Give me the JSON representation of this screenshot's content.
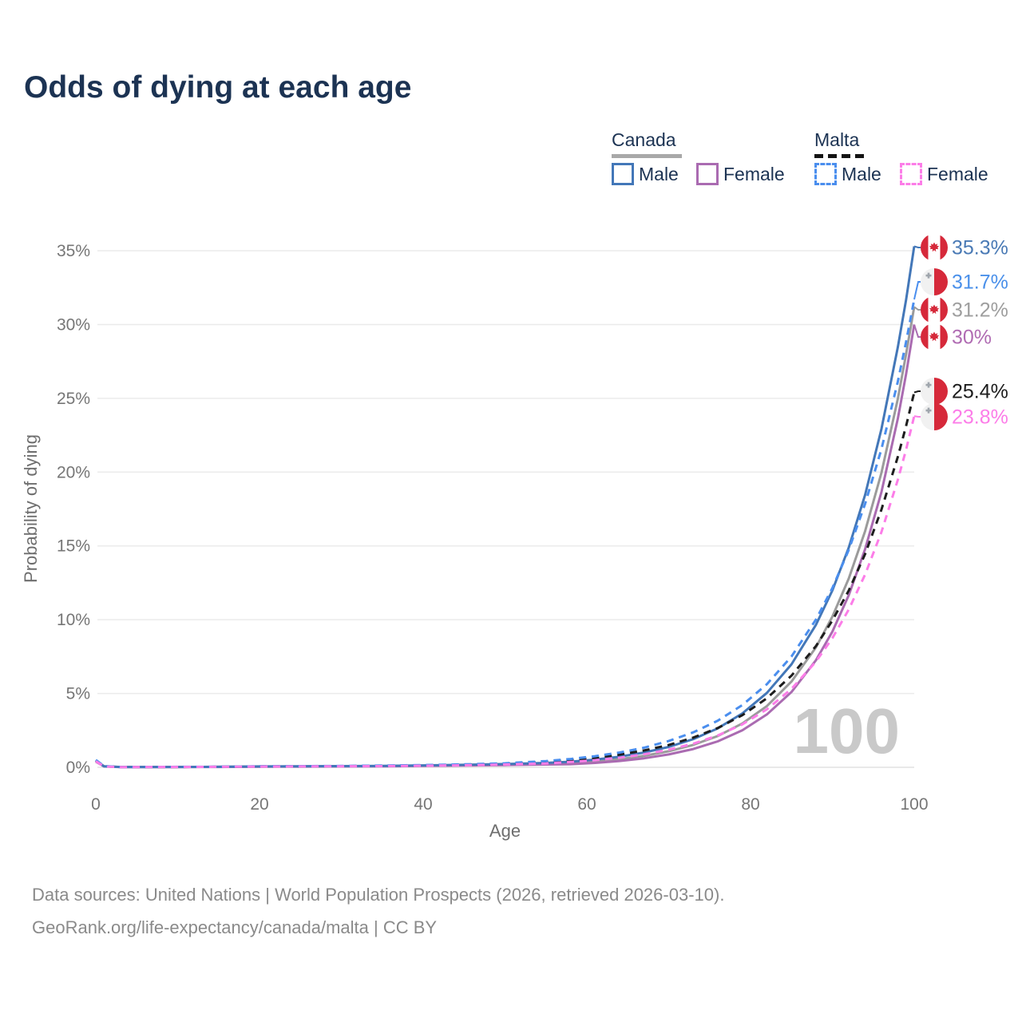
{
  "title": "Odds of dying at each age",
  "legend": {
    "groups": [
      {
        "label": "Canada",
        "line_style": "solid",
        "items": [
          {
            "label": "Male",
            "color": "#4377b8"
          },
          {
            "label": "Female",
            "color": "#aa6bb1"
          }
        ]
      },
      {
        "label": "Malta",
        "line_style": "dashed",
        "items": [
          {
            "label": "Male",
            "color": "#4a8eee"
          },
          {
            "label": "Female",
            "color": "#fc7de8"
          }
        ]
      }
    ]
  },
  "watermark": "100",
  "chart_data": {
    "type": "line",
    "title": "Odds of dying at each age",
    "xlabel": "Age",
    "ylabel": "Probability of dying",
    "xlim": [
      0,
      100
    ],
    "ylim": [
      0,
      36
    ],
    "x_ticks": [
      0,
      20,
      40,
      60,
      80,
      100
    ],
    "y_ticks": [
      {
        "value": 0,
        "label": "0%"
      },
      {
        "value": 5,
        "label": "5%"
      },
      {
        "value": 10,
        "label": "10%"
      },
      {
        "value": 15,
        "label": "15%"
      },
      {
        "value": 20,
        "label": "20%"
      },
      {
        "value": 25,
        "label": "25%"
      },
      {
        "value": 30,
        "label": "30%"
      },
      {
        "value": 35,
        "label": "35%"
      }
    ],
    "grid": "horizontal",
    "legend_position": "top-right",
    "ages": [
      0,
      1,
      3,
      6,
      10,
      15,
      20,
      25,
      30,
      35,
      40,
      45,
      50,
      55,
      58,
      61,
      64,
      67,
      70,
      73,
      76,
      79,
      82,
      85,
      88,
      90,
      92,
      94,
      96,
      98,
      99,
      100
    ],
    "series": [
      {
        "name": "Canada Male",
        "country": "Canada",
        "sex": "Male",
        "color": "#4377b8",
        "dashed": false,
        "end_value_pct": 35.3,
        "values": [
          0.45,
          0.07,
          0.02,
          0.02,
          0.02,
          0.03,
          0.06,
          0.07,
          0.08,
          0.1,
          0.13,
          0.17,
          0.22,
          0.3,
          0.38,
          0.52,
          0.72,
          1.0,
          1.38,
          1.91,
          2.64,
          3.65,
          5.04,
          6.98,
          9.66,
          11.98,
          14.88,
          18.46,
          22.93,
          28.47,
          31.67,
          35.3
        ]
      },
      {
        "name": "Malta Male",
        "country": "Malta",
        "sex": "Male",
        "color": "#4a8eee",
        "dashed": true,
        "end_value_pct": 31.7,
        "values": [
          0.5,
          0.08,
          0.02,
          0.02,
          0.03,
          0.04,
          0.07,
          0.08,
          0.09,
          0.12,
          0.15,
          0.2,
          0.27,
          0.42,
          0.56,
          0.75,
          1.0,
          1.33,
          1.78,
          2.37,
          3.16,
          4.22,
          5.63,
          7.51,
          10.02,
          12.14,
          14.73,
          17.85,
          21.57,
          26.14,
          28.82,
          31.7
        ]
      },
      {
        "name": "Canada Both sexes",
        "country": "Canada",
        "sex": "Both",
        "color": "#9b9b9b",
        "dashed": false,
        "end_value_pct": 31.2,
        "values": [
          0.42,
          0.07,
          0.02,
          0.02,
          0.02,
          0.03,
          0.05,
          0.06,
          0.07,
          0.08,
          0.11,
          0.14,
          0.18,
          0.24,
          0.28,
          0.4,
          0.55,
          0.78,
          1.09,
          1.52,
          2.12,
          2.97,
          4.15,
          5.81,
          8.13,
          10.21,
          12.79,
          16.0,
          19.96,
          24.97,
          27.99,
          31.2
        ]
      },
      {
        "name": "Canada Female",
        "country": "Canada",
        "sex": "Female",
        "color": "#aa6bb1",
        "dashed": false,
        "end_value_pct": 30,
        "values": [
          0.38,
          0.06,
          0.01,
          0.01,
          0.02,
          0.02,
          0.04,
          0.05,
          0.06,
          0.07,
          0.09,
          0.12,
          0.15,
          0.19,
          0.21,
          0.3,
          0.43,
          0.61,
          0.87,
          1.24,
          1.76,
          2.51,
          3.58,
          5.1,
          7.26,
          9.19,
          11.66,
          14.78,
          18.66,
          23.63,
          26.64,
          30.0
        ]
      },
      {
        "name": "Malta Both sexes",
        "country": "Malta",
        "sex": "Both",
        "color": "#1d1d1d",
        "dashed": true,
        "end_value_pct": 25.4,
        "values": [
          0.46,
          0.07,
          0.02,
          0.02,
          0.02,
          0.03,
          0.06,
          0.07,
          0.08,
          0.1,
          0.13,
          0.17,
          0.23,
          0.37,
          0.49,
          0.65,
          0.86,
          1.14,
          1.51,
          2.01,
          2.66,
          3.53,
          4.68,
          6.21,
          8.22,
          9.95,
          11.97,
          14.45,
          17.47,
          21.04,
          23.12,
          25.4
        ]
      },
      {
        "name": "Malta Female",
        "country": "Malta",
        "sex": "Female",
        "color": "#fc7de8",
        "dashed": true,
        "end_value_pct": 23.8,
        "values": [
          0.41,
          0.06,
          0.01,
          0.02,
          0.02,
          0.03,
          0.05,
          0.06,
          0.07,
          0.08,
          0.11,
          0.14,
          0.19,
          0.26,
          0.36,
          0.48,
          0.65,
          0.88,
          1.19,
          1.6,
          2.16,
          2.91,
          3.93,
          5.31,
          7.17,
          8.75,
          10.69,
          13.06,
          15.95,
          19.48,
          21.52,
          23.8
        ]
      }
    ],
    "end_labels": [
      {
        "text": "35.3%",
        "flag": "canada",
        "color": "#4a7ab5"
      },
      {
        "text": "31.7%",
        "flag": "malta",
        "color": "#4a90ea"
      },
      {
        "text": "31.2%",
        "flag": "canada",
        "color": "#9e9e9e"
      },
      {
        "text": "30%",
        "flag": "canada",
        "color": "#b06cb3"
      },
      {
        "text": "25.4%",
        "flag": "malta",
        "color": "#1d1d1d"
      },
      {
        "text": "23.8%",
        "flag": "malta",
        "color": "#fc7de8"
      }
    ]
  },
  "footer": {
    "line1": "Data sources: United Nations | World Population Prospects (2026, retrieved 2026-03-10).",
    "line2": "GeoRank.org/life-expectancy/canada/malta | CC BY"
  }
}
